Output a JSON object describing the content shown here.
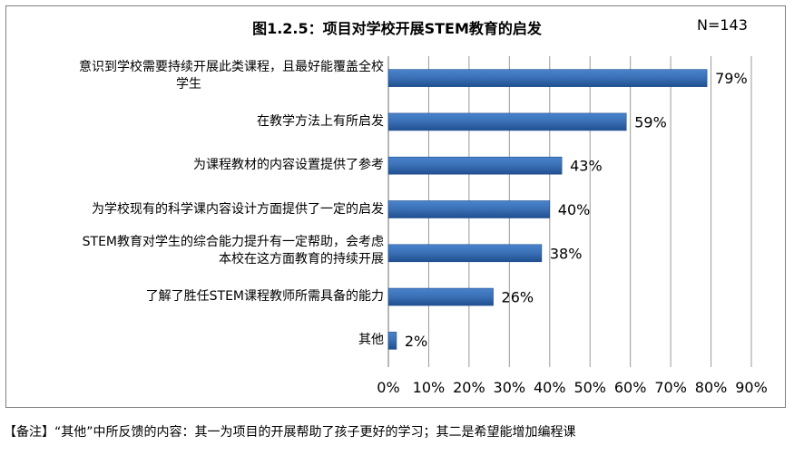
{
  "chart_data": {
    "type": "bar",
    "orientation": "horizontal",
    "title": "图1.2.5：项目对学校开展STEM教育的启发",
    "sample_size_label": "N=143",
    "categories": [
      [
        "意识到学校需要持续开展此类课程，且最好能覆盖全校",
        "学生"
      ],
      [
        "在教学方法上有所启发"
      ],
      [
        "为课程教材的内容设置提供了参考"
      ],
      [
        "为学校现有的科学课内容设计方面提供了一定的启发"
      ],
      [
        "STEM教育对学生的综合能力提升有一定帮助，会考虑",
        "本校在这方面教育的持续开展"
      ],
      [
        "了解了胜任STEM课程教师所需具备的能力"
      ],
      [
        "其他"
      ]
    ],
    "values": [
      79,
      59,
      43,
      40,
      38,
      26,
      2
    ],
    "value_labels": [
      "79%",
      "59%",
      "43%",
      "40%",
      "38%",
      "26%",
      "2%"
    ],
    "xlim": [
      0,
      90
    ],
    "x_ticks": [
      "0%",
      "10%",
      "20%",
      "30%",
      "40%",
      "50%",
      "60%",
      "70%",
      "80%",
      "90%"
    ],
    "grid": true,
    "bar_color": "#3a6fb5",
    "bar_color_light": "#4a84cc",
    "bar_color_dark": "#1f4f8f",
    "grid_color": "#9a9a9a"
  },
  "note": "【备注】“其他”中所反馈的内容：其一为项目的开展帮助了孩子更好的学习；其二是希望能增加编程课"
}
